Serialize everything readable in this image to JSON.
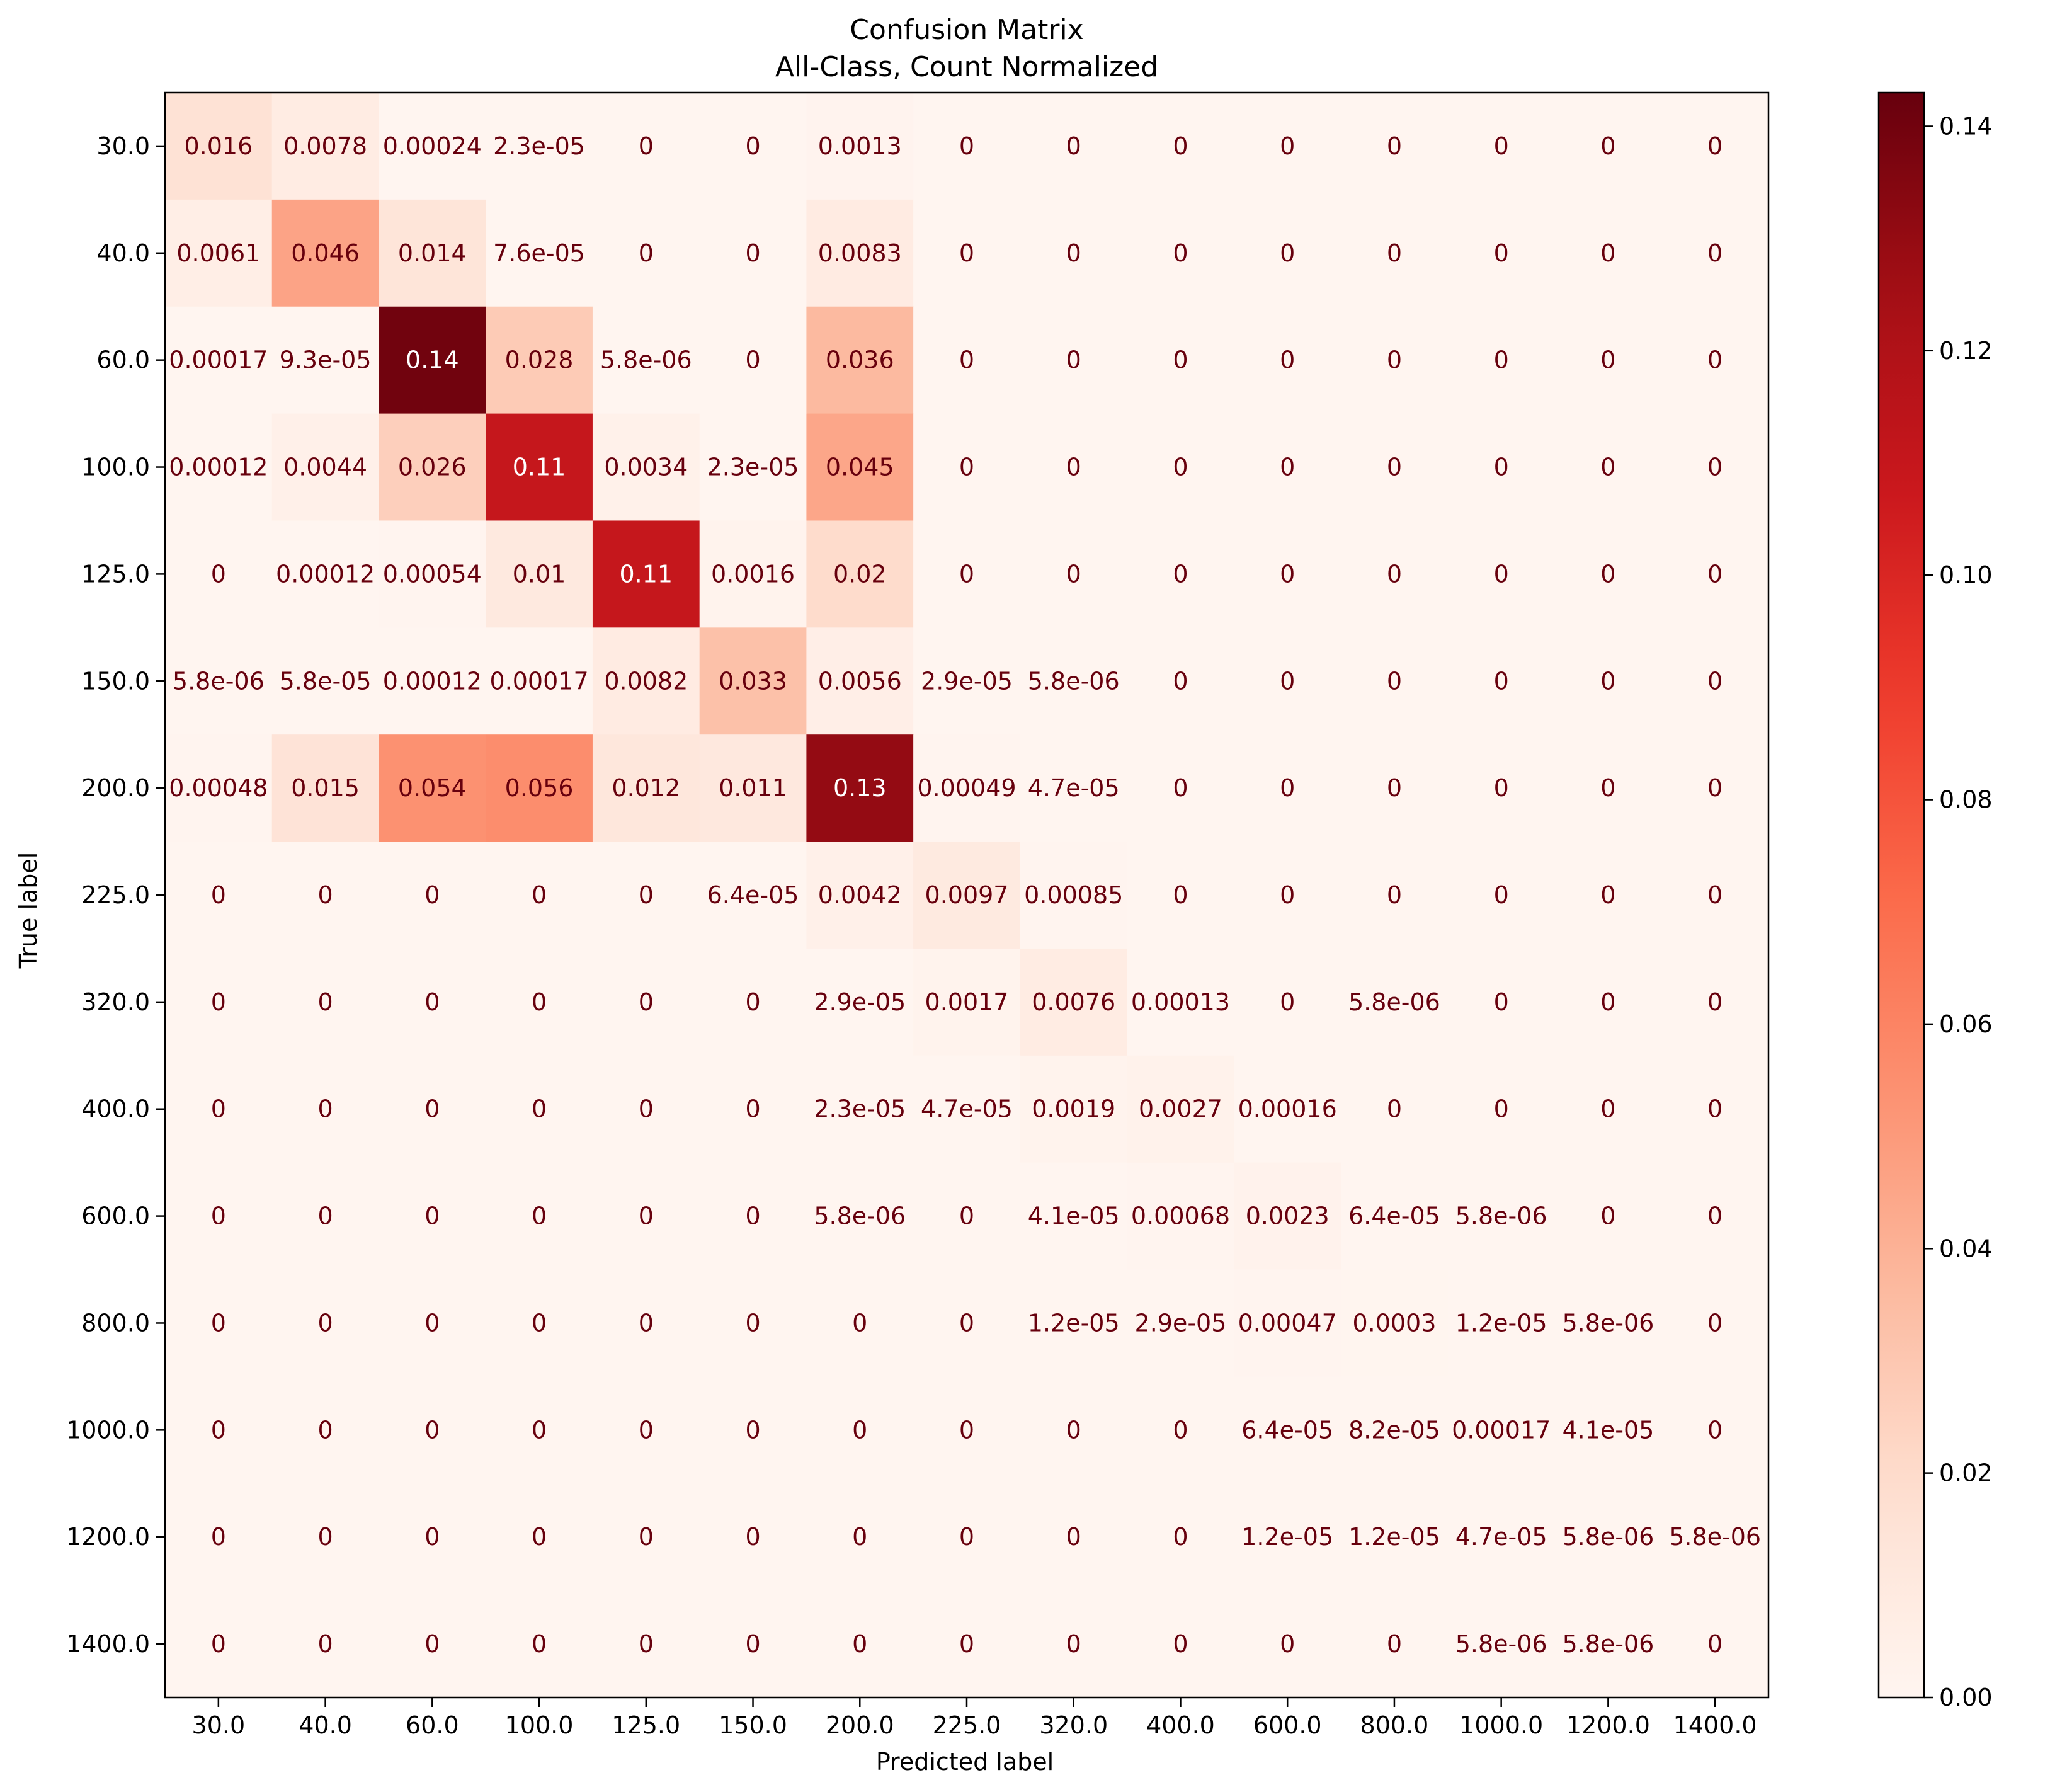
{
  "chart_data": {
    "type": "heatmap",
    "title": "Confusion Matrix",
    "subtitle": "All-Class, Count Normalized",
    "xlabel": "Predicted label",
    "ylabel": "True label",
    "categories": [
      "30.0",
      "40.0",
      "60.0",
      "100.0",
      "125.0",
      "150.0",
      "200.0",
      "225.0",
      "320.0",
      "400.0",
      "600.0",
      "800.0",
      "1000.0",
      "1200.0",
      "1400.0"
    ],
    "colormap": "Reds",
    "colorbar": {
      "min": 0.0,
      "max": 0.143,
      "ticks": [
        "0.00",
        "0.02",
        "0.04",
        "0.06",
        "0.08",
        "0.10",
        "0.12",
        "0.14"
      ]
    },
    "rows": [
      [
        0.016,
        0.0078,
        0.00024,
        2.3e-05,
        0,
        0,
        0.0013,
        0,
        0,
        0,
        0,
        0,
        0,
        0,
        0
      ],
      [
        0.0061,
        0.046,
        0.014,
        7.6e-05,
        0,
        0,
        0.0083,
        0,
        0,
        0,
        0,
        0,
        0,
        0,
        0
      ],
      [
        0.00017,
        9.3e-05,
        0.14,
        0.028,
        5.8e-06,
        0,
        0.036,
        0,
        0,
        0,
        0,
        0,
        0,
        0,
        0
      ],
      [
        0.00012,
        0.0044,
        0.026,
        0.11,
        0.0034,
        2.3e-05,
        0.045,
        0,
        0,
        0,
        0,
        0,
        0,
        0,
        0
      ],
      [
        0,
        0.00012,
        0.00054,
        0.01,
        0.11,
        0.0016,
        0.02,
        0,
        0,
        0,
        0,
        0,
        0,
        0,
        0
      ],
      [
        5.8e-06,
        5.8e-05,
        0.00012,
        0.00017,
        0.0082,
        0.033,
        0.0056,
        2.9e-05,
        5.8e-06,
        0,
        0,
        0,
        0,
        0,
        0
      ],
      [
        0.00048,
        0.015,
        0.054,
        0.056,
        0.012,
        0.011,
        0.13,
        0.00049,
        4.7e-05,
        0,
        0,
        0,
        0,
        0,
        0
      ],
      [
        0,
        0,
        0,
        0,
        0,
        6.4e-05,
        0.0042,
        0.0097,
        0.00085,
        0,
        0,
        0,
        0,
        0,
        0
      ],
      [
        0,
        0,
        0,
        0,
        0,
        0,
        2.9e-05,
        0.0017,
        0.0076,
        0.00013,
        0,
        5.8e-06,
        0,
        0,
        0
      ],
      [
        0,
        0,
        0,
        0,
        0,
        0,
        2.3e-05,
        4.7e-05,
        0.0019,
        0.0027,
        0.00016,
        0,
        0,
        0,
        0
      ],
      [
        0,
        0,
        0,
        0,
        0,
        0,
        5.8e-06,
        0,
        4.1e-05,
        0.00068,
        0.0023,
        6.4e-05,
        5.8e-06,
        0,
        0
      ],
      [
        0,
        0,
        0,
        0,
        0,
        0,
        0,
        0,
        1.2e-05,
        2.9e-05,
        0.00047,
        0.0003,
        1.2e-05,
        5.8e-06,
        0
      ],
      [
        0,
        0,
        0,
        0,
        0,
        0,
        0,
        0,
        0,
        0,
        6.4e-05,
        8.2e-05,
        0.00017,
        4.1e-05,
        0
      ],
      [
        0,
        0,
        0,
        0,
        0,
        0,
        0,
        0,
        0,
        0,
        1.2e-05,
        1.2e-05,
        4.7e-05,
        5.8e-06,
        5.8e-06
      ],
      [
        0,
        0,
        0,
        0,
        0,
        0,
        0,
        0,
        0,
        0,
        0,
        0,
        5.8e-06,
        5.8e-06,
        0
      ]
    ],
    "labels": [
      [
        "0.016",
        "0.0078",
        "0.00024",
        "2.3e-05",
        "0",
        "0",
        "0.0013",
        "0",
        "0",
        "0",
        "0",
        "0",
        "0",
        "0",
        "0"
      ],
      [
        "0.0061",
        "0.046",
        "0.014",
        "7.6e-05",
        "0",
        "0",
        "0.0083",
        "0",
        "0",
        "0",
        "0",
        "0",
        "0",
        "0",
        "0"
      ],
      [
        "0.00017",
        "9.3e-05",
        "0.14",
        "0.028",
        "5.8e-06",
        "0",
        "0.036",
        "0",
        "0",
        "0",
        "0",
        "0",
        "0",
        "0",
        "0"
      ],
      [
        "0.00012",
        "0.0044",
        "0.026",
        "0.11",
        "0.0034",
        "2.3e-05",
        "0.045",
        "0",
        "0",
        "0",
        "0",
        "0",
        "0",
        "0",
        "0"
      ],
      [
        "0",
        "0.00012",
        "0.00054",
        "0.01",
        "0.11",
        "0.0016",
        "0.02",
        "0",
        "0",
        "0",
        "0",
        "0",
        "0",
        "0",
        "0"
      ],
      [
        "5.8e-06",
        "5.8e-05",
        "0.00012",
        "0.00017",
        "0.0082",
        "0.033",
        "0.0056",
        "2.9e-05",
        "5.8e-06",
        "0",
        "0",
        "0",
        "0",
        "0",
        "0"
      ],
      [
        "0.00048",
        "0.015",
        "0.054",
        "0.056",
        "0.012",
        "0.011",
        "0.13",
        "0.00049",
        "4.7e-05",
        "0",
        "0",
        "0",
        "0",
        "0",
        "0"
      ],
      [
        "0",
        "0",
        "0",
        "0",
        "0",
        "6.4e-05",
        "0.0042",
        "0.0097",
        "0.00085",
        "0",
        "0",
        "0",
        "0",
        "0",
        "0"
      ],
      [
        "0",
        "0",
        "0",
        "0",
        "0",
        "0",
        "2.9e-05",
        "0.0017",
        "0.0076",
        "0.00013",
        "0",
        "5.8e-06",
        "0",
        "0",
        "0"
      ],
      [
        "0",
        "0",
        "0",
        "0",
        "0",
        "0",
        "2.3e-05",
        "4.7e-05",
        "0.0019",
        "0.0027",
        "0.00016",
        "0",
        "0",
        "0",
        "0"
      ],
      [
        "0",
        "0",
        "0",
        "0",
        "0",
        "0",
        "5.8e-06",
        "0",
        "4.1e-05",
        "0.00068",
        "0.0023",
        "6.4e-05",
        "5.8e-06",
        "0",
        "0"
      ],
      [
        "0",
        "0",
        "0",
        "0",
        "0",
        "0",
        "0",
        "0",
        "1.2e-05",
        "2.9e-05",
        "0.00047",
        "0.0003",
        "1.2e-05",
        "5.8e-06",
        "0"
      ],
      [
        "0",
        "0",
        "0",
        "0",
        "0",
        "0",
        "0",
        "0",
        "0",
        "0",
        "6.4e-05",
        "8.2e-05",
        "0.00017",
        "4.1e-05",
        "0"
      ],
      [
        "0",
        "0",
        "0",
        "0",
        "0",
        "0",
        "0",
        "0",
        "0",
        "0",
        "1.2e-05",
        "1.2e-05",
        "4.7e-05",
        "5.8e-06",
        "5.8e-06"
      ],
      [
        "0",
        "0",
        "0",
        "0",
        "0",
        "0",
        "0",
        "0",
        "0",
        "0",
        "0",
        "0",
        "5.8e-06",
        "5.8e-06",
        "0"
      ]
    ]
  }
}
